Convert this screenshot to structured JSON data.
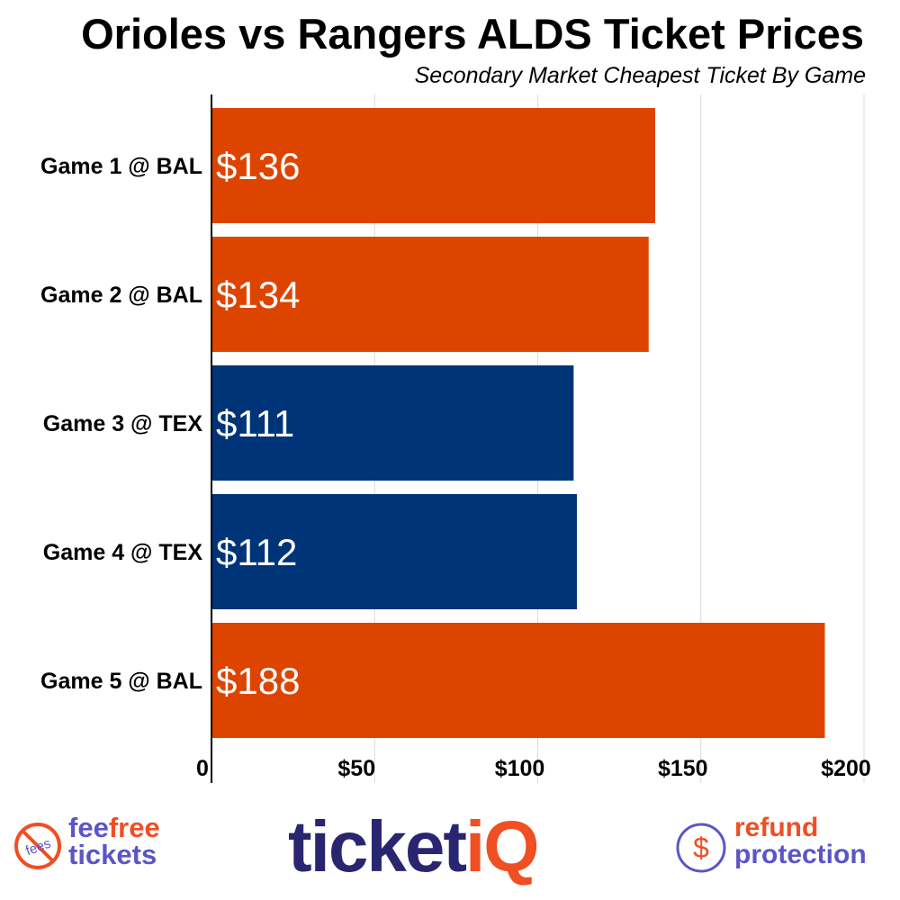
{
  "chart_data": {
    "type": "bar",
    "orientation": "horizontal",
    "title": "Orioles vs Rangers ALDS Ticket Prices",
    "subtitle": "Secondary Market Cheapest Ticket By Game",
    "categories": [
      "Game 1 @ BAL",
      "Game 2 @ BAL",
      "Game 3 @ TEX",
      "Game 4 @ TEX",
      "Game 5 @ BAL"
    ],
    "values": [
      136,
      134,
      111,
      112,
      188
    ],
    "data_labels": [
      "$136",
      "$134",
      "$111",
      "$112",
      "$188"
    ],
    "bar_colors": [
      "#dd4400",
      "#dd4400",
      "#003478",
      "#003478",
      "#dd4400"
    ],
    "xlim": [
      0,
      200
    ],
    "x_ticks": [
      0,
      50,
      100,
      150,
      200
    ],
    "x_tick_labels": [
      "0",
      "$50",
      "$100",
      "$150",
      "$200"
    ],
    "grid": true,
    "xlabel": "",
    "ylabel": ""
  },
  "logos": {
    "feefree": {
      "line1a": "fee",
      "line1b": "free",
      "line2": "tickets",
      "badge": "fees"
    },
    "ticketiq": {
      "a": "ticket",
      "b": "iQ"
    },
    "refund": {
      "line1": "refund",
      "line2": "protection",
      "symbol": "$"
    }
  },
  "colors": {
    "orange": "#f04e23",
    "purple": "#5b55c8",
    "navy": "#2a2570"
  }
}
